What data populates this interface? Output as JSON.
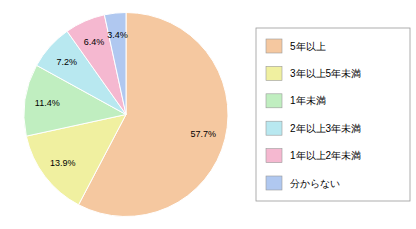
{
  "chart_data": {
    "type": "pie",
    "categories": [
      "5年以上",
      "3年以上5年未満",
      "1年未満",
      "2年以上3年未満",
      "1年以上2年未満",
      "分からない"
    ],
    "values": [
      57.7,
      13.9,
      11.4,
      7.2,
      6.4,
      3.4
    ],
    "value_labels": [
      "57.7%",
      "13.9%",
      "11.4%",
      "7.2%",
      "6.4%",
      "3.4%"
    ],
    "colors": [
      "#F5C8A0",
      "#F0F0A0",
      "#C0EEC0",
      "#B8E8F0",
      "#F5B8D0",
      "#B0C8F0"
    ],
    "data_labels": true,
    "legend": "right"
  }
}
